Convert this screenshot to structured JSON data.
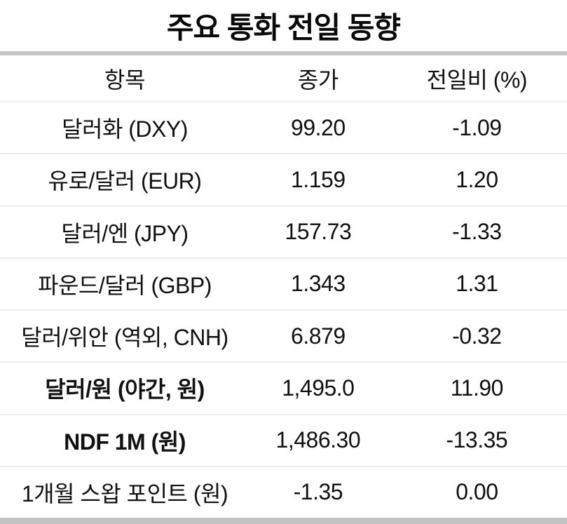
{
  "title": "주요 통화 전일 동향",
  "table": {
    "headers": [
      "항목",
      "종가",
      "전일비 (%)"
    ],
    "rows": [
      {
        "item": "달러화 (DXY)",
        "close": "99.20",
        "change": "-1.09",
        "bold": false
      },
      {
        "item": "유로/달러 (EUR)",
        "close": "1.159",
        "change": "1.20",
        "bold": false
      },
      {
        "item": "달러/엔 (JPY)",
        "close": "157.73",
        "change": "-1.33",
        "bold": false
      },
      {
        "item": "파운드/달러 (GBP)",
        "close": "1.343",
        "change": "1.31",
        "bold": false
      },
      {
        "item": "달러/위안 (역외, CNH)",
        "close": "6.879",
        "change": "-0.32",
        "bold": false
      },
      {
        "item": "달러/원 (야간, 원)",
        "close": "1,495.0",
        "change": "11.90",
        "bold": true
      },
      {
        "item": "NDF 1M (원)",
        "close": "1,486.30",
        "change": "-13.35",
        "bold": true
      },
      {
        "item": "1개월 스왑 포인트 (원)",
        "close": "-1.35",
        "change": "0.00",
        "bold": false
      }
    ]
  },
  "colors": {
    "text": "#111111",
    "thick_rule": "#c3c3c3",
    "row_divider": "#ececec",
    "background": "#ffffff"
  },
  "chart_data": {
    "type": "table",
    "title": "주요 통화 전일 동향",
    "columns": [
      "항목",
      "종가",
      "전일비 (%)"
    ],
    "rows": [
      [
        "달러화 (DXY)",
        99.2,
        -1.09
      ],
      [
        "유로/달러 (EUR)",
        1.159,
        1.2
      ],
      [
        "달러/엔 (JPY)",
        157.73,
        -1.33
      ],
      [
        "파운드/달러 (GBP)",
        1.343,
        1.31
      ],
      [
        "달러/위안 (역외, CNH)",
        6.879,
        -0.32
      ],
      [
        "달러/원 (야간, 원)",
        1495.0,
        11.9
      ],
      [
        "NDF 1M (원)",
        1486.3,
        -13.35
      ],
      [
        "1개월 스왑 포인트 (원)",
        -1.35,
        0.0
      ]
    ]
  }
}
